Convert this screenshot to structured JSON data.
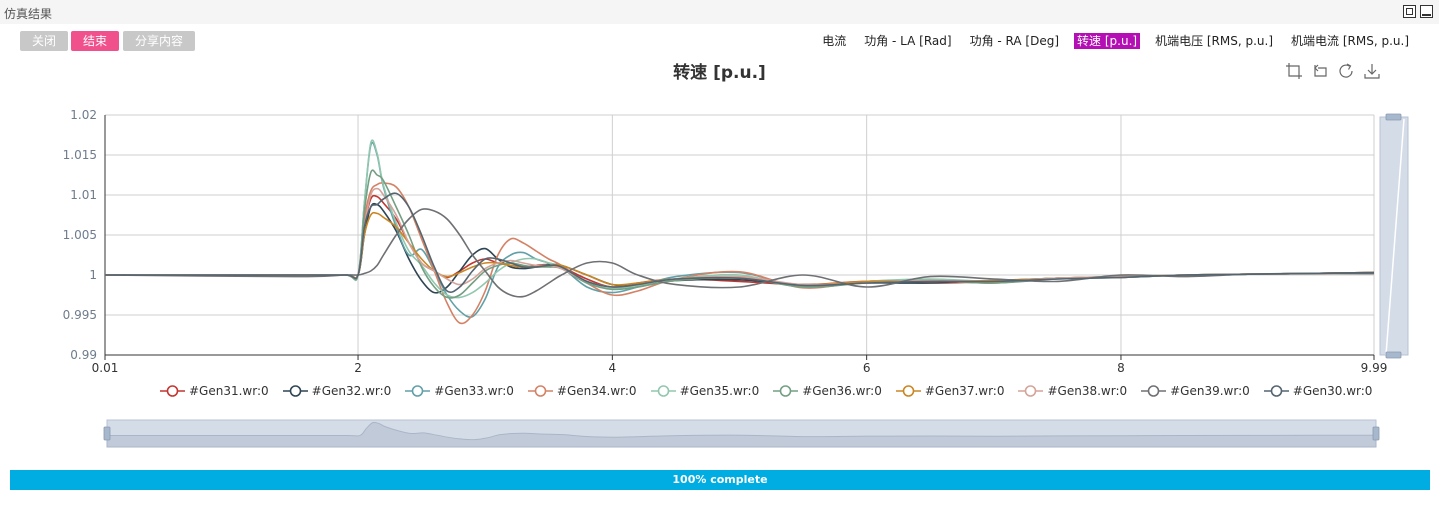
{
  "window": {
    "title": "仿真结果"
  },
  "buttons": {
    "close": "关闭",
    "end": "结束",
    "share": "分享内容"
  },
  "tabs": [
    {
      "label": "电流",
      "active": false
    },
    {
      "label": "功角 - LA [Rad]",
      "active": false
    },
    {
      "label": "功角 - RA [Deg]",
      "active": false
    },
    {
      "label": "转速 [p.u.]",
      "active": true
    },
    {
      "label": "机端电压 [RMS, p.u.]",
      "active": false
    },
    {
      "label": "机端电流 [RMS, p.u.]",
      "active": false
    }
  ],
  "toolbox": [
    "zoom-icon",
    "zoom-reset-icon",
    "restore-icon",
    "download-icon"
  ],
  "progress": {
    "value": 1.0,
    "label": "100% complete",
    "color": "#00ade3"
  },
  "chart_data": {
    "type": "line",
    "title": "转速 [p.u.]",
    "xlabel": "",
    "ylabel": "",
    "xlim": [
      0.01,
      9.99
    ],
    "ylim": [
      0.99,
      1.02
    ],
    "x_ticks": [
      "0.01",
      "2",
      "4",
      "6",
      "8",
      "9.99"
    ],
    "y_ticks": [
      "0.99",
      "0.995",
      "1",
      "1.005",
      "1.01",
      "1.015",
      "1.02"
    ],
    "grid": true,
    "legend_position": "bottom",
    "x": [
      0.01,
      1.5,
      1.9,
      2.0,
      2.05,
      2.1,
      2.15,
      2.2,
      2.3,
      2.4,
      2.5,
      2.6,
      2.7,
      2.8,
      2.9,
      3.0,
      3.1,
      3.2,
      3.3,
      3.4,
      3.5,
      3.6,
      3.8,
      4.0,
      4.2,
      4.5,
      5.0,
      5.5,
      6.0,
      6.5,
      7.0,
      7.5,
      8.0,
      8.5,
      9.0,
      9.5,
      9.99
    ],
    "series": [
      {
        "name": "#Gen31.wr:0",
        "color": "#c23531",
        "values": [
          1.0,
          1.0,
          1.0,
          1.0,
          1.006,
          1.0095,
          1.0098,
          1.009,
          1.007,
          1.004,
          1.0015,
          1.0005,
          0.9997,
          1.0005,
          1.0015,
          1.002,
          1.0015,
          1.0012,
          1.001,
          1.0012,
          1.0013,
          1.001,
          0.9995,
          0.9985,
          0.999,
          0.9995,
          0.9992,
          0.9988,
          0.9992,
          0.999,
          0.9992,
          0.9996,
          0.9997,
          1.0,
          1.0001,
          1.0002,
          1.0003
        ]
      },
      {
        "name": "#Gen32.wr:0",
        "color": "#2f4554",
        "values": [
          1.0,
          1.0,
          1.0,
          1.0,
          1.005,
          1.0085,
          1.0088,
          1.008,
          1.0055,
          1.002,
          0.9993,
          0.9978,
          0.9985,
          1.0005,
          1.0025,
          1.0033,
          1.002,
          1.001,
          1.0008,
          1.001,
          1.0013,
          1.0012,
          1.0,
          0.9988,
          0.9987,
          0.9993,
          0.9994,
          0.9988,
          0.999,
          0.999,
          0.9993,
          0.9996,
          0.9998,
          1.0,
          1.0001,
          1.0002,
          1.0003
        ]
      },
      {
        "name": "#Gen33.wr:0",
        "color": "#61a0a8",
        "values": [
          1.0,
          1.0,
          1.0,
          1.0,
          1.009,
          1.0162,
          1.015,
          1.011,
          1.006,
          1.0025,
          1.0032,
          1.0005,
          0.9975,
          0.9955,
          0.9948,
          0.997,
          1.001,
          1.0025,
          1.0028,
          1.002,
          1.0015,
          1.001,
          0.9985,
          0.9978,
          0.9985,
          0.9998,
          1.0003,
          0.9985,
          0.9992,
          0.9993,
          0.999,
          0.9995,
          0.9997,
          1.0,
          1.0001,
          1.0002,
          1.0002
        ]
      },
      {
        "name": "#Gen34.wr:0",
        "color": "#d48265",
        "values": [
          1.0,
          1.0,
          1.0,
          1.0,
          1.007,
          1.0105,
          1.0113,
          1.0115,
          1.011,
          1.0085,
          1.0045,
          1.0005,
          0.9965,
          0.994,
          0.995,
          0.998,
          1.0025,
          1.0045,
          1.004,
          1.003,
          1.002,
          1.0012,
          0.999,
          0.9975,
          0.998,
          0.9995,
          1.0004,
          0.9984,
          0.9992,
          0.9993,
          0.999,
          0.9996,
          0.9998,
          1.0,
          1.0001,
          1.0002,
          1.0003
        ]
      },
      {
        "name": "#Gen35.wr:0",
        "color": "#91c7ae",
        "values": [
          1.0,
          1.0,
          1.0,
          1.0,
          1.009,
          1.0165,
          1.0152,
          1.0112,
          1.0065,
          1.003,
          1.0012,
          0.999,
          0.9975,
          0.9972,
          0.9978,
          0.999,
          1.0005,
          1.0015,
          1.002,
          1.002,
          1.0015,
          1.001,
          0.999,
          0.9983,
          0.9987,
          0.9995,
          1.0,
          0.9985,
          0.9992,
          0.9995,
          0.9992,
          0.9996,
          0.9998,
          1.0,
          1.0001,
          1.0002,
          1.0002
        ]
      },
      {
        "name": "#Gen36.wr:0",
        "color": "#749f83",
        "values": [
          1.0,
          1.0,
          1.0,
          1.0,
          1.008,
          1.0128,
          1.0125,
          1.0118,
          1.0085,
          1.005,
          1.001,
          0.9985,
          0.9972,
          0.9975,
          0.999,
          1.0005,
          1.0012,
          1.0015,
          1.0012,
          1.001,
          1.001,
          1.0008,
          0.999,
          0.9982,
          0.9985,
          0.9993,
          0.9997,
          0.9985,
          0.999,
          0.9993,
          0.999,
          0.9996,
          0.9997,
          1.0,
          1.0001,
          1.0002,
          1.0002
        ]
      },
      {
        "name": "#Gen37.wr:0",
        "color": "#ca8622",
        "values": [
          1.0,
          1.0,
          1.0,
          1.0,
          1.005,
          1.0075,
          1.0077,
          1.0072,
          1.006,
          1.004,
          1.002,
          1.0005,
          0.9998,
          1.0003,
          1.001,
          1.0015,
          1.0015,
          1.0012,
          1.001,
          1.001,
          1.0012,
          1.0012,
          1.0,
          0.9988,
          0.999,
          0.9995,
          0.9996,
          0.9988,
          0.9992,
          0.9992,
          0.9993,
          0.9996,
          0.9998,
          1.0,
          1.0001,
          1.0002,
          1.0003
        ]
      },
      {
        "name": "#Gen38.wr:0",
        "color": "#d4a39a",
        "values": [
          1.0,
          1.0,
          1.0,
          1.0,
          1.006,
          1.01,
          1.0108,
          1.01,
          1.0075,
          1.004,
          1.0015,
          1.0005,
          0.9995,
          0.9988,
          0.9995,
          1.0008,
          1.0015,
          1.0018,
          1.0015,
          1.0012,
          1.0012,
          1.0008,
          0.9992,
          0.9985,
          0.9988,
          0.9995,
          0.9998,
          0.9988,
          0.999,
          0.9993,
          0.9992,
          0.9996,
          0.9998,
          1.0,
          1.0001,
          1.0002,
          1.0002
        ]
      },
      {
        "name": "#Gen39.wr:0",
        "color": "#6e7074",
        "values": [
          1.0,
          0.9998,
          1.0,
          1.0,
          1.0002,
          1.0005,
          1.0012,
          1.0025,
          1.005,
          1.007,
          1.0082,
          1.008,
          1.007,
          1.005,
          1.0025,
          1.0005,
          0.9985,
          0.9975,
          0.9973,
          0.998,
          0.999,
          1.0,
          1.0015,
          1.0015,
          1.0,
          0.9988,
          0.9985,
          1.0,
          0.9985,
          0.9998,
          0.9995,
          0.9992,
          1.0,
          0.9998,
          1.0001,
          1.0002,
          1.0002
        ]
      },
      {
        "name": "#Gen30.wr:0",
        "color": "#546570",
        "values": [
          1.0,
          1.0,
          1.0,
          1.0,
          1.006,
          1.0085,
          1.0088,
          1.0095,
          1.0102,
          1.0085,
          1.005,
          1.001,
          0.998,
          0.9985,
          1.0005,
          1.002,
          1.002,
          1.0015,
          1.001,
          1.001,
          1.0012,
          1.001,
          0.9992,
          0.9985,
          0.9988,
          0.9995,
          0.9996,
          0.9987,
          0.999,
          0.9992,
          0.9992,
          0.9995,
          0.9997,
          1.0,
          1.0001,
          1.0002,
          1.0003
        ]
      }
    ]
  }
}
